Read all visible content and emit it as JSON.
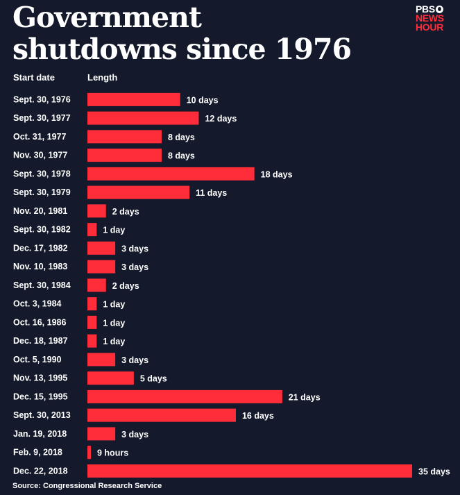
{
  "title": "Government shutdowns since 1976",
  "logo": {
    "line1": "PBS",
    "line2": "NEWS",
    "line3": "HOUR"
  },
  "headers": {
    "start": "Start date",
    "length": "Length"
  },
  "source": "Source: Congressional Research Service",
  "colors": {
    "bar": "#ff2d3a",
    "background": "#141a2b",
    "text": "#ffffff"
  },
  "chart_data": {
    "type": "bar",
    "orientation": "horizontal",
    "unit": "days",
    "categories": [
      "Sept. 30, 1976",
      "Sept. 30, 1977",
      "Oct. 31, 1977",
      "Nov. 30, 1977",
      "Sept. 30, 1978",
      "Sept. 30, 1979",
      "Nov. 20, 1981",
      "Sept. 30, 1982",
      "Dec. 17, 1982",
      "Nov. 10, 1983",
      "Sept. 30, 1984",
      "Oct. 3, 1984",
      "Oct. 16, 1986",
      "Dec. 18, 1987",
      "Oct. 5, 1990",
      "Nov. 13, 1995",
      "Dec. 15, 1995",
      "Sept. 30, 2013",
      "Jan. 19, 2018",
      "Feb. 9, 2018",
      "Dec. 22, 2018"
    ],
    "values": [
      10,
      12,
      8,
      8,
      18,
      11,
      2,
      1,
      3,
      3,
      2,
      1,
      1,
      1,
      3,
      5,
      21,
      16,
      3,
      0.375,
      35
    ],
    "labels": [
      "10 days",
      "12 days",
      "8 days",
      "8 days",
      "18 days",
      "11 days",
      "2 days",
      "1 day",
      "3 days",
      "3 days",
      "2 days",
      "1 day",
      "1 day",
      "1 day",
      "3 days",
      "5 days",
      "21 days",
      "16 days",
      "3 days",
      "9 hours",
      "35 days"
    ],
    "xlim": [
      0,
      35
    ],
    "grid": false,
    "legend": "none"
  }
}
